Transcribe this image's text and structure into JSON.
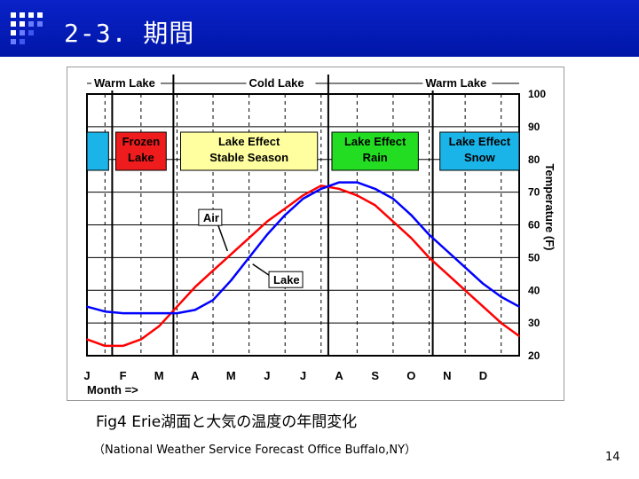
{
  "slide": {
    "title": "2-3. 期間",
    "caption": "Fig4 Erie湖面と大気の温度の年間変化",
    "source": "（National Weather Service Forecast Office Buffalo,NY）",
    "page_number": "14",
    "colors": {
      "header": "#0016a8",
      "air": "#ff0000",
      "lake": "#0000ff"
    }
  },
  "chart_data": {
    "type": "line",
    "xlabel": "Month =>",
    "ylabel": "Temperature (F)",
    "ylim": [
      20,
      100
    ],
    "yticks": [
      20,
      30,
      40,
      50,
      60,
      70,
      80,
      90,
      100
    ],
    "xlim": [
      0,
      12
    ],
    "months": [
      "J",
      "F",
      "M",
      "A",
      "M",
      "J",
      "J",
      "A",
      "S",
      "O",
      "N",
      "D"
    ],
    "season_headers": [
      {
        "label": "Warm Lake",
        "x": 0
      },
      {
        "label": "Cold Lake",
        "x": 4.3
      },
      {
        "label": "Warm Lake",
        "x": 9.2
      }
    ],
    "period_dividers": [
      0.7,
      2.4,
      6.7,
      9.6
    ],
    "seasons": [
      {
        "label": "",
        "from": 0,
        "to": 0.6,
        "color": "#1ab4e8"
      },
      {
        "label": "Frozen\nLake",
        "from": 0.8,
        "to": 2.2,
        "color": "#ee1c1c"
      },
      {
        "label": "Lake Effect\nStable Season",
        "from": 2.6,
        "to": 6.4,
        "color": "#ffffa0"
      },
      {
        "label": "Lake Effect\nRain",
        "from": 6.8,
        "to": 9.2,
        "color": "#22dd22"
      },
      {
        "label": "Lake Effect\nSnow",
        "from": 9.8,
        "to": 12,
        "color": "#1ab4e8"
      }
    ],
    "series": [
      {
        "name": "Air",
        "color": "#ff0000",
        "x": [
          0,
          0.5,
          1,
          1.5,
          2,
          2.5,
          3,
          3.5,
          4,
          4.5,
          5,
          5.5,
          6,
          6.5,
          7,
          7.5,
          8,
          8.5,
          9,
          9.5,
          10,
          10.5,
          11,
          11.5,
          12
        ],
        "y": [
          25,
          23,
          23,
          25,
          29,
          35,
          41,
          46,
          51,
          56,
          61,
          65,
          69,
          72,
          71,
          69,
          66,
          61,
          56,
          50,
          45,
          40,
          35,
          30,
          26
        ]
      },
      {
        "name": "Lake",
        "color": "#0000ff",
        "x": [
          0,
          0.5,
          1,
          1.5,
          2,
          2.5,
          3,
          3.5,
          4,
          4.5,
          5,
          5.5,
          6,
          6.5,
          7,
          7.5,
          8,
          8.5,
          9,
          9.5,
          10,
          10.5,
          11,
          11.5,
          12
        ],
        "y": [
          35,
          33.5,
          33,
          33,
          33,
          33,
          34,
          37,
          43,
          50,
          57,
          63,
          68,
          71,
          73,
          73,
          71,
          68,
          63,
          57,
          52,
          47,
          42,
          38,
          35
        ]
      }
    ],
    "annotations": [
      {
        "label": "Air",
        "x": 3.2,
        "y": 62
      },
      {
        "label": "Lake",
        "x": 5.2,
        "y": 43
      }
    ]
  }
}
